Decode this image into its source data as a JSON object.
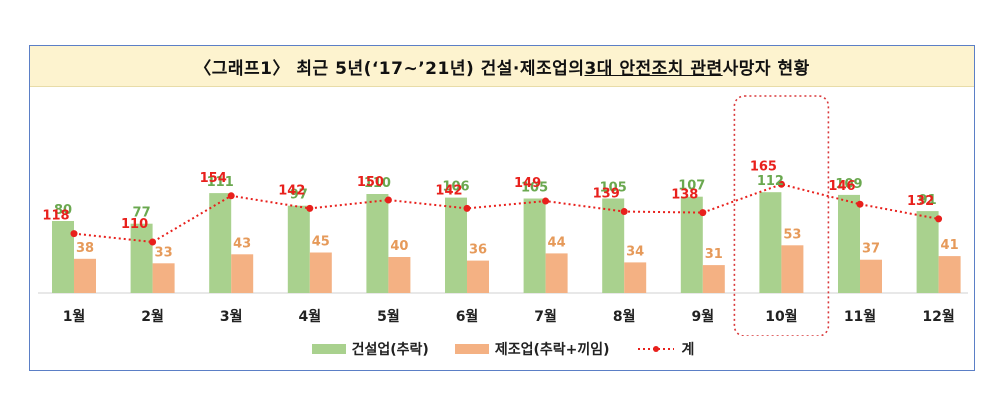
{
  "title": {
    "prefix": "〈그래프1〉 최근 5년(‘17∼’21년) 건설·제조업의 ",
    "underlined": "3대 안전조치 관련",
    "suffix": " 사망자 현황"
  },
  "colors": {
    "construction": "#a9d18e",
    "manufacturing": "#f4b183",
    "total": "#e8201c",
    "construction_label": "#6aa84f",
    "manufacturing_label": "#e69a5a",
    "highlight_box": "#d9383a"
  },
  "chart_data": {
    "type": "bar",
    "categories": [
      "1월",
      "2월",
      "3월",
      "4월",
      "5월",
      "6월",
      "7월",
      "8월",
      "9월",
      "10월",
      "11월",
      "12월"
    ],
    "series": [
      {
        "name": "건설업(추락)",
        "type": "bar",
        "values": [
          80,
          77,
          111,
          97,
          110,
          106,
          105,
          105,
          107,
          112,
          109,
          91
        ]
      },
      {
        "name": "제조업(추락+끼임)",
        "type": "bar",
        "values": [
          38,
          33,
          43,
          45,
          40,
          36,
          44,
          34,
          31,
          53,
          37,
          41
        ]
      },
      {
        "name": "계",
        "type": "line",
        "values": [
          118,
          110,
          154,
          142,
          150,
          142,
          149,
          139,
          138,
          165,
          146,
          132
        ]
      }
    ],
    "highlight_category": "10월",
    "legend": [
      "건설업(추락)",
      "제조업(추락+끼임)",
      "계"
    ],
    "legend_position": "bottom",
    "grid": false
  }
}
